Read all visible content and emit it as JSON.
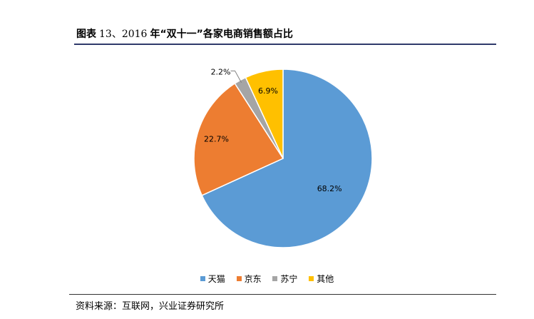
{
  "figure": {
    "label": "图表",
    "number": "13、2016",
    "title_text": "年“双十一”各家电商销售额占比",
    "source": "资料来源：互联网，兴业证券研究所"
  },
  "chart_data": {
    "type": "pie",
    "start_angle": "12 o'clock, clockwise",
    "legend_position": "bottom",
    "slices": [
      {
        "label": "天猫",
        "value": 68.2,
        "value_label": "68.2%",
        "color": "#5b9bd5"
      },
      {
        "label": "京东",
        "value": 22.7,
        "value_label": "22.7%",
        "color": "#ed7d31"
      },
      {
        "label": "苏宁",
        "value": 2.2,
        "value_label": "2.2%",
        "color": "#a5a5a5"
      },
      {
        "label": "其他",
        "value": 6.9,
        "value_label": "6.9%",
        "color": "#ffc000"
      }
    ]
  }
}
